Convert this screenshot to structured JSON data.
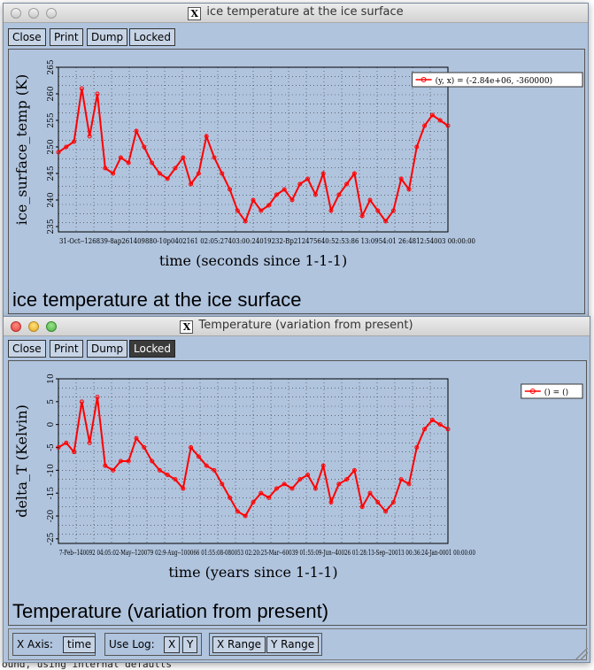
{
  "terminal": {
    "text": "ound, using internal defaults"
  },
  "windows": [
    {
      "title": "ice temperature at the ice surface",
      "toolbar": {
        "close": "Close",
        "print": "Print",
        "dump": "Dump",
        "locked": "Locked"
      },
      "caption": "ice temperature at the ice surface",
      "legend": "(y, x) = (-2.84e+06, -360000)",
      "colors": {
        "series": "#ff0000"
      }
    },
    {
      "title": "Temperature (variation from present)",
      "toolbar": {
        "close": "Close",
        "print": "Print",
        "dump": "Dump",
        "locked": "Locked"
      },
      "caption": "Temperature (variation from present)",
      "legend": "() = ()",
      "colors": {
        "series": "#ff0000"
      },
      "bottombar": {
        "xaxis_label": "X Axis:",
        "xaxis_value": "time",
        "uselog_label": "Use Log:",
        "x_btn": "X",
        "y_btn": "Y",
        "xrange_btn": "X Range",
        "yrange_btn": "Y Range"
      }
    }
  ],
  "chart_data": [
    {
      "type": "line",
      "xlabel": "time (seconds since 1-1-1)",
      "ylabel": "ice_surface_temp (K)",
      "ylim": [
        234,
        265
      ],
      "yticks": [
        "235",
        "240",
        "245",
        "250",
        "255",
        "260",
        "265"
      ],
      "xtick_text": "31-Oct--126839-8ap261409880-10p0402161 02:05:27403:00:24019232-Bp212475640:52:53:86 13:0954:01 26:4812:54003 00:00:00",
      "x": [
        0,
        0.02,
        0.04,
        0.06,
        0.08,
        0.1,
        0.12,
        0.14,
        0.16,
        0.18,
        0.2,
        0.22,
        0.24,
        0.26,
        0.28,
        0.3,
        0.32,
        0.34,
        0.36,
        0.38,
        0.4,
        0.42,
        0.44,
        0.46,
        0.48,
        0.5,
        0.52,
        0.54,
        0.56,
        0.58,
        0.6,
        0.62,
        0.64,
        0.66,
        0.68,
        0.7,
        0.72,
        0.74,
        0.76,
        0.78,
        0.8,
        0.82,
        0.84,
        0.86,
        0.88,
        0.9,
        0.92,
        0.94,
        0.96,
        0.98,
        1.0
      ],
      "values": [
        249,
        250,
        251,
        261,
        252,
        260,
        246,
        245,
        248,
        247,
        253,
        250,
        247,
        245,
        244,
        246,
        248,
        243,
        245,
        252,
        248,
        245,
        242,
        238,
        236,
        240,
        238,
        239,
        241,
        242,
        240,
        243,
        244,
        241,
        245,
        238,
        241,
        243,
        245,
        237,
        240,
        238,
        236,
        238,
        244,
        242,
        250,
        254,
        256,
        255,
        254
      ]
    },
    {
      "type": "line",
      "xlabel": "time (years since 1-1-1)",
      "ylabel": "delta_T (Kelvin)",
      "ylim": [
        -26,
        10
      ],
      "yticks": [
        "-25",
        "-20",
        "-15",
        "-10",
        "-5",
        "0",
        "5",
        "10"
      ],
      "xtick_text": "7-Feb--140092 04:05:02-May--120079 02:9-Aug--100066 01:55:08-080053 02:20:25-Mar--60039 01:55:09-Jun--40026 01:28:13-Sep--20013 00:36:24-Jan-0001 00:00:00",
      "x": [
        0,
        0.02,
        0.04,
        0.06,
        0.08,
        0.1,
        0.12,
        0.14,
        0.16,
        0.18,
        0.2,
        0.22,
        0.24,
        0.26,
        0.28,
        0.3,
        0.32,
        0.34,
        0.36,
        0.38,
        0.4,
        0.42,
        0.44,
        0.46,
        0.48,
        0.5,
        0.52,
        0.54,
        0.56,
        0.58,
        0.6,
        0.62,
        0.64,
        0.66,
        0.68,
        0.7,
        0.72,
        0.74,
        0.76,
        0.78,
        0.8,
        0.82,
        0.84,
        0.86,
        0.88,
        0.9,
        0.92,
        0.94,
        0.96,
        0.98,
        1.0
      ],
      "values": [
        -5,
        -4,
        -6,
        5,
        -4,
        6,
        -9,
        -10,
        -8,
        -8,
        -3,
        -5,
        -8,
        -10,
        -11,
        -12,
        -14,
        -5,
        -7,
        -9,
        -10,
        -13,
        -16,
        -19,
        -20,
        -17,
        -15,
        -16,
        -14,
        -13,
        -14,
        -12,
        -11,
        -14,
        -9,
        -17,
        -13,
        -12,
        -10,
        -18,
        -15,
        -17,
        -19,
        -17,
        -12,
        -13,
        -5,
        -1,
        1,
        0,
        -1
      ]
    }
  ]
}
